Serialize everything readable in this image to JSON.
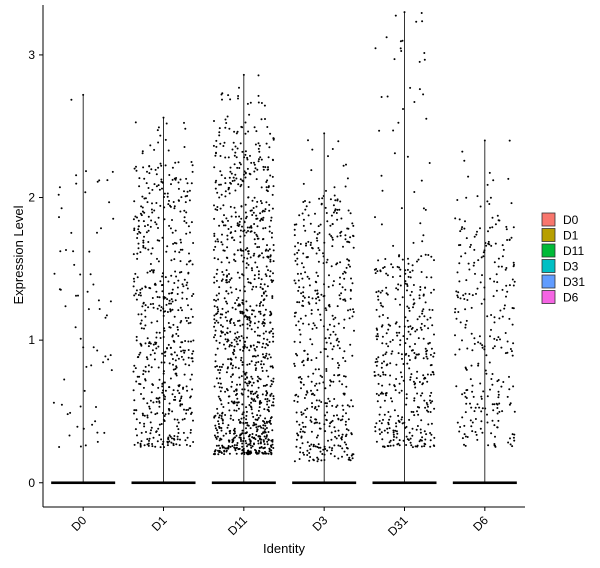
{
  "chart_data": {
    "type": "scatter",
    "subtype": "violin-jitter",
    "title": "",
    "xlabel": "Identity",
    "ylabel": "Expression Level",
    "categories": [
      "D0",
      "D1",
      "D11",
      "D3",
      "D31",
      "D6"
    ],
    "ylim": [
      -0.17,
      3.35
    ],
    "yticks": [
      0,
      1,
      2,
      3
    ],
    "grid": false,
    "legend": {
      "placement": "right",
      "title": "",
      "entries": [
        "D0",
        "D1",
        "D11",
        "D3",
        "D31",
        "D6"
      ]
    },
    "colors": [
      "#F8766D",
      "#B79F00",
      "#00BA38",
      "#00BFC4",
      "#619CFF",
      "#F564E3"
    ],
    "series": [
      {
        "name": "D0",
        "max": 2.72,
        "n_nonzero": 70,
        "dense_low": 0.25,
        "dense_high": 2.3,
        "n_zero": 400
      },
      {
        "name": "D1",
        "max": 2.56,
        "n_nonzero": 600,
        "dense_low": 0.25,
        "dense_high": 2.25,
        "n_zero": 600
      },
      {
        "name": "D11",
        "max": 2.86,
        "n_nonzero": 1100,
        "dense_low": 0.2,
        "dense_high": 2.5,
        "n_zero": 800
      },
      {
        "name": "D3",
        "max": 2.45,
        "n_nonzero": 500,
        "dense_low": 0.15,
        "dense_high": 2.0,
        "n_zero": 500
      },
      {
        "name": "D31",
        "max": 3.3,
        "n_nonzero": 430,
        "dense_low": 0.25,
        "dense_high": 1.6,
        "n_zero": 500
      },
      {
        "name": "D6",
        "max": 2.4,
        "n_nonzero": 280,
        "dense_low": 0.25,
        "dense_high": 2.0,
        "n_zero": 450
      }
    ]
  }
}
